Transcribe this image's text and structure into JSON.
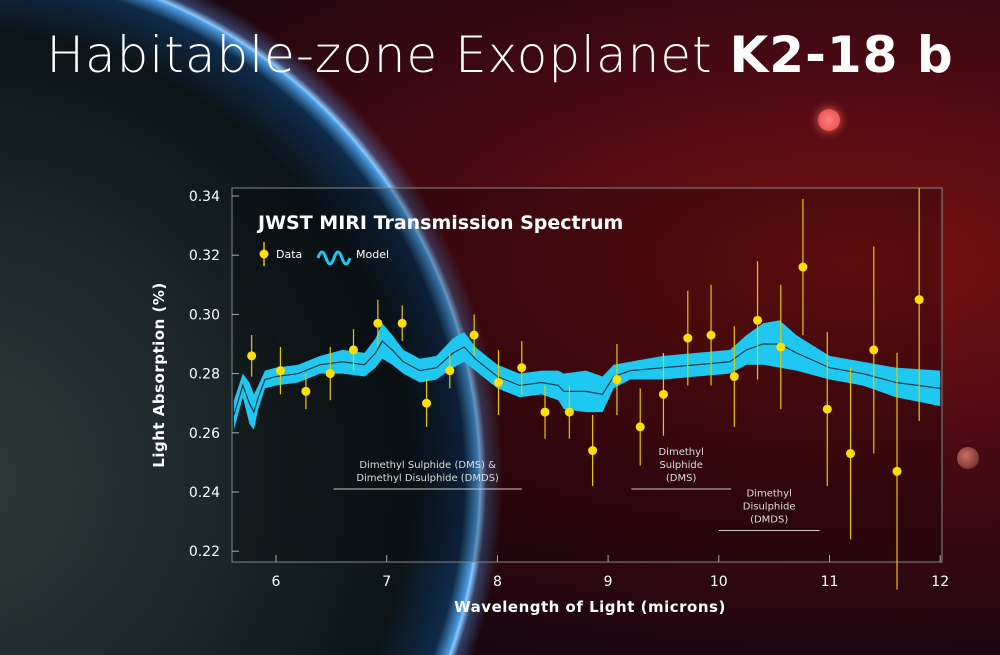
{
  "header": {
    "title_light": "Habitable-zone Exoplanet ",
    "title_bold": "K2-18 b"
  },
  "chart_data": {
    "type": "scatter",
    "title": "JWST MIRI Transmission Spectrum",
    "xlabel": "Wavelength of Light (microns)",
    "ylabel": "Light Absorption (%)",
    "xlim": [
      5.6,
      12
    ],
    "ylim": [
      0.215,
      0.342
    ],
    "xticks": [
      "6",
      "7",
      "8",
      "9",
      "10",
      "11",
      "12"
    ],
    "yticks": [
      "0.22",
      "0.24",
      "0.26",
      "0.28",
      "0.30",
      "0.32",
      "0.34"
    ],
    "grid": false,
    "legend": {
      "position": "top-left",
      "entries": [
        "Data",
        "Model"
      ]
    },
    "colors": {
      "data": "#ffe000",
      "model": "#1ec8f0",
      "model_line": "#0d3a4a"
    },
    "series": [
      {
        "name": "Data",
        "type": "errorbar",
        "x": [
          5.78,
          6.04,
          6.27,
          6.49,
          6.7,
          6.92,
          7.14,
          7.36,
          7.57,
          7.79,
          8.01,
          8.22,
          8.43,
          8.65,
          8.86,
          9.08,
          9.29,
          9.5,
          9.72,
          9.93,
          10.14,
          10.35,
          10.56,
          10.76,
          10.98,
          11.19,
          11.4,
          11.61,
          11.81
        ],
        "y": [
          0.286,
          0.281,
          0.274,
          0.28,
          0.288,
          0.297,
          0.297,
          0.27,
          0.281,
          0.293,
          0.277,
          0.282,
          0.267,
          0.267,
          0.254,
          0.278,
          0.262,
          0.273,
          0.292,
          0.293,
          0.279,
          0.298,
          0.289,
          0.316,
          0.268,
          0.253,
          0.288,
          0.247,
          0.305
        ],
        "err": [
          0.007,
          0.008,
          0.006,
          0.009,
          0.007,
          0.008,
          0.006,
          0.008,
          0.006,
          0.007,
          0.011,
          0.009,
          0.009,
          0.009,
          0.012,
          0.012,
          0.013,
          0.014,
          0.016,
          0.017,
          0.017,
          0.02,
          0.021,
          0.023,
          0.026,
          0.029,
          0.035,
          0.04,
          0.041
        ]
      },
      {
        "name": "Model",
        "type": "band",
        "x": [
          5.62,
          5.7,
          5.76,
          5.8,
          5.84,
          5.9,
          6.0,
          6.2,
          6.4,
          6.6,
          6.8,
          6.9,
          6.96,
          7.05,
          7.15,
          7.3,
          7.45,
          7.6,
          7.7,
          7.8,
          8.0,
          8.2,
          8.4,
          8.55,
          8.6,
          8.8,
          8.95,
          9.05,
          9.2,
          9.5,
          9.8,
          10.1,
          10.25,
          10.4,
          10.55,
          10.7,
          11.0,
          11.3,
          11.6,
          12.0
        ],
        "y": [
          0.266,
          0.276,
          0.27,
          0.267,
          0.272,
          0.278,
          0.279,
          0.28,
          0.283,
          0.284,
          0.283,
          0.287,
          0.291,
          0.288,
          0.284,
          0.281,
          0.282,
          0.287,
          0.289,
          0.285,
          0.279,
          0.276,
          0.277,
          0.276,
          0.274,
          0.274,
          0.273,
          0.279,
          0.281,
          0.282,
          0.283,
          0.284,
          0.288,
          0.29,
          0.29,
          0.287,
          0.282,
          0.28,
          0.277,
          0.275
        ],
        "halfwidth": [
          0.005,
          0.004,
          0.007,
          0.006,
          0.004,
          0.003,
          0.003,
          0.003,
          0.003,
          0.004,
          0.004,
          0.005,
          0.006,
          0.005,
          0.004,
          0.004,
          0.004,
          0.005,
          0.005,
          0.004,
          0.004,
          0.004,
          0.004,
          0.005,
          0.006,
          0.007,
          0.006,
          0.004,
          0.003,
          0.004,
          0.004,
          0.004,
          0.005,
          0.007,
          0.008,
          0.006,
          0.004,
          0.004,
          0.005,
          0.006
        ]
      }
    ],
    "annotations": [
      {
        "lines": [
          "Dimethyl Sulphide (DMS) &",
          "Dimethyl Disulphide (DMDS)"
        ],
        "range": [
          6.52,
          8.22
        ],
        "y": 0.241
      },
      {
        "lines": [
          "Dimethyl",
          "Sulphide",
          "(DMS)"
        ],
        "range": [
          9.21,
          10.11
        ],
        "y": 0.241
      },
      {
        "lines": [
          "Dimethyl",
          "Disulphide",
          "(DMDS)"
        ],
        "range": [
          10.0,
          10.91
        ],
        "y": 0.227
      }
    ]
  }
}
